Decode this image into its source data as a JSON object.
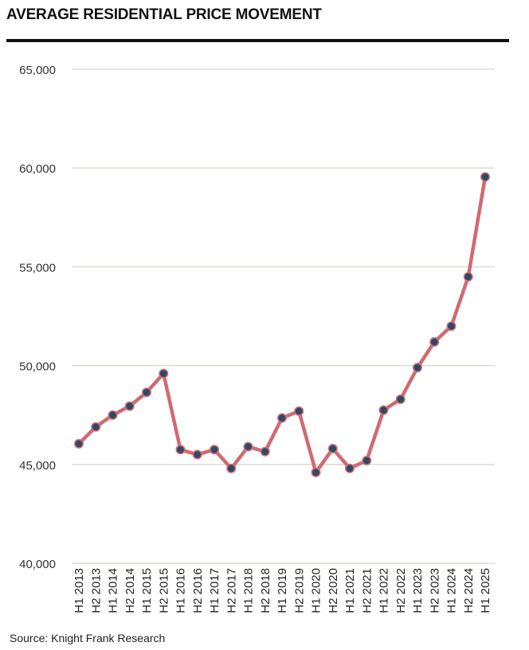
{
  "header": {
    "title": "AVERAGE RESIDENTIAL PRICE MOVEMENT"
  },
  "footer": {
    "source": "Source: Knight Frank Research"
  },
  "colors": {
    "line": "#d06a72",
    "marker_fill": "#2c4a66",
    "grid": "#d8d8cc",
    "title_rule": "#111111"
  },
  "chart_data": {
    "type": "line",
    "title": "AVERAGE RESIDENTIAL PRICE MOVEMENT",
    "xlabel": "",
    "ylabel": "",
    "ylim": [
      40000,
      65000
    ],
    "yticks": [
      40000,
      45000,
      50000,
      55000,
      60000,
      65000
    ],
    "ytick_labels": [
      "40,000",
      "45,000",
      "50,000",
      "55,000",
      "60,000",
      "65,000"
    ],
    "grid": true,
    "legend": "none",
    "categories": [
      "H1 2013",
      "H2 2013",
      "H1 2014",
      "H2 2014",
      "H1 2015",
      "H2 2015",
      "H1 2016",
      "H2 2016",
      "H1 2017",
      "H2 2017",
      "H1 2018",
      "H2 2018",
      "H1 2019",
      "H2 2019",
      "H1 2020",
      "H2 2020",
      "H1 2021",
      "H2 2021",
      "H1 2022",
      "H2 2022",
      "H1 2023",
      "H2 2023",
      "H1 2024",
      "H2 2024",
      "H1 2025"
    ],
    "series": [
      {
        "values": [
          46050,
          46900,
          47500,
          47950,
          48650,
          49600,
          45750,
          45500,
          45750,
          44800,
          45900,
          45650,
          47350,
          47700,
          44600,
          45800,
          44800,
          45200,
          47750,
          48300,
          49900,
          51200,
          52000,
          54500,
          59550
        ]
      }
    ]
  }
}
